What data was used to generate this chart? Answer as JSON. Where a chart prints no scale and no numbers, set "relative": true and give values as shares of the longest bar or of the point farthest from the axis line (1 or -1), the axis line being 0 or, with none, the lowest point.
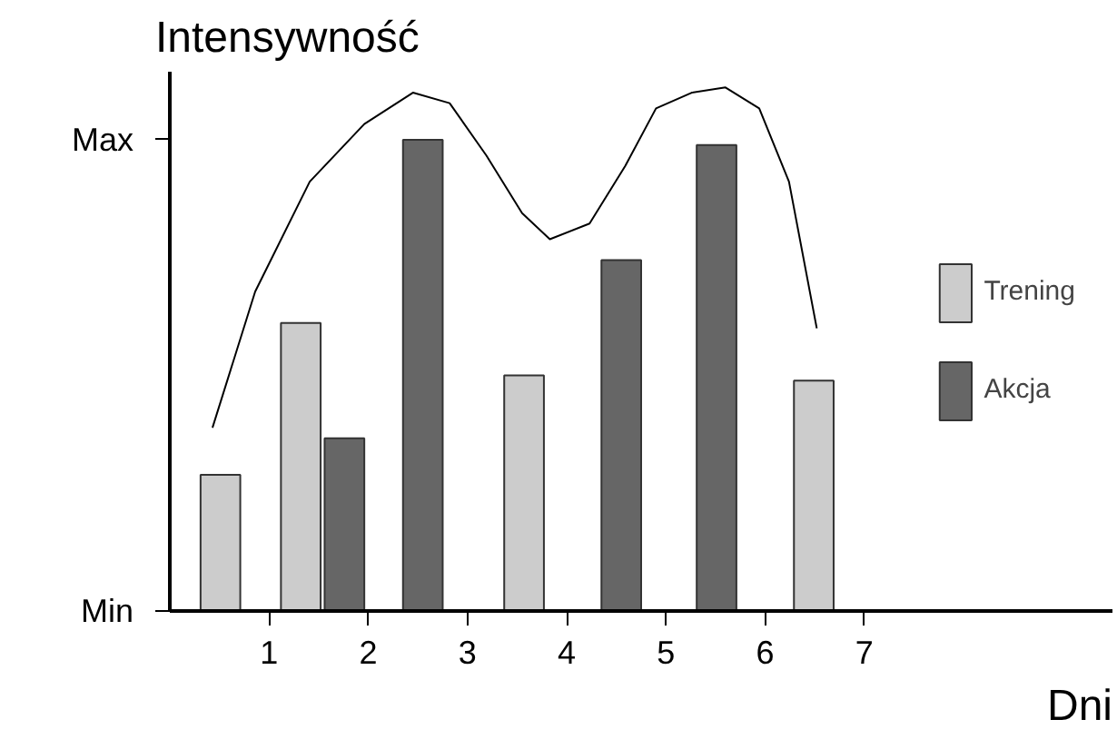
{
  "chart_data": {
    "type": "bar",
    "xlabel": "Dni",
    "ylabel": "Intensywność",
    "relative": true,
    "xlim": [
      0,
      9.5
    ],
    "xticks": [
      1,
      2,
      3,
      4,
      5,
      6,
      7
    ],
    "annotations": [
      "Min",
      "Max"
    ],
    "grid": false,
    "legend": "right",
    "series": [
      {
        "name": "Trening",
        "color": "#cccccc",
        "x": [
          0.51,
          1.32,
          3.57,
          6.49
        ],
        "values": [
          0.26,
          0.55,
          0.45,
          0.44
        ]
      },
      {
        "name": "Akcja",
        "color": "#666666",
        "x": [
          1.76,
          2.55,
          4.55,
          5.51
        ],
        "values": [
          0.33,
          0.9,
          0.67,
          0.89
        ]
      },
      {
        "type": "line",
        "color": "#000000",
        "x": [
          0.43,
          0.86,
          1.41,
          1.96,
          2.45,
          2.82,
          3.19,
          3.55,
          3.83,
          4.23,
          4.59,
          4.9,
          5.26,
          5.6,
          5.94,
          6.24,
          6.52
        ],
        "values": [
          0.35,
          0.61,
          0.82,
          0.93,
          0.99,
          0.97,
          0.87,
          0.76,
          0.71,
          0.74,
          0.85,
          0.96,
          0.99,
          1.0,
          0.96,
          0.82,
          0.54
        ]
      }
    ]
  }
}
